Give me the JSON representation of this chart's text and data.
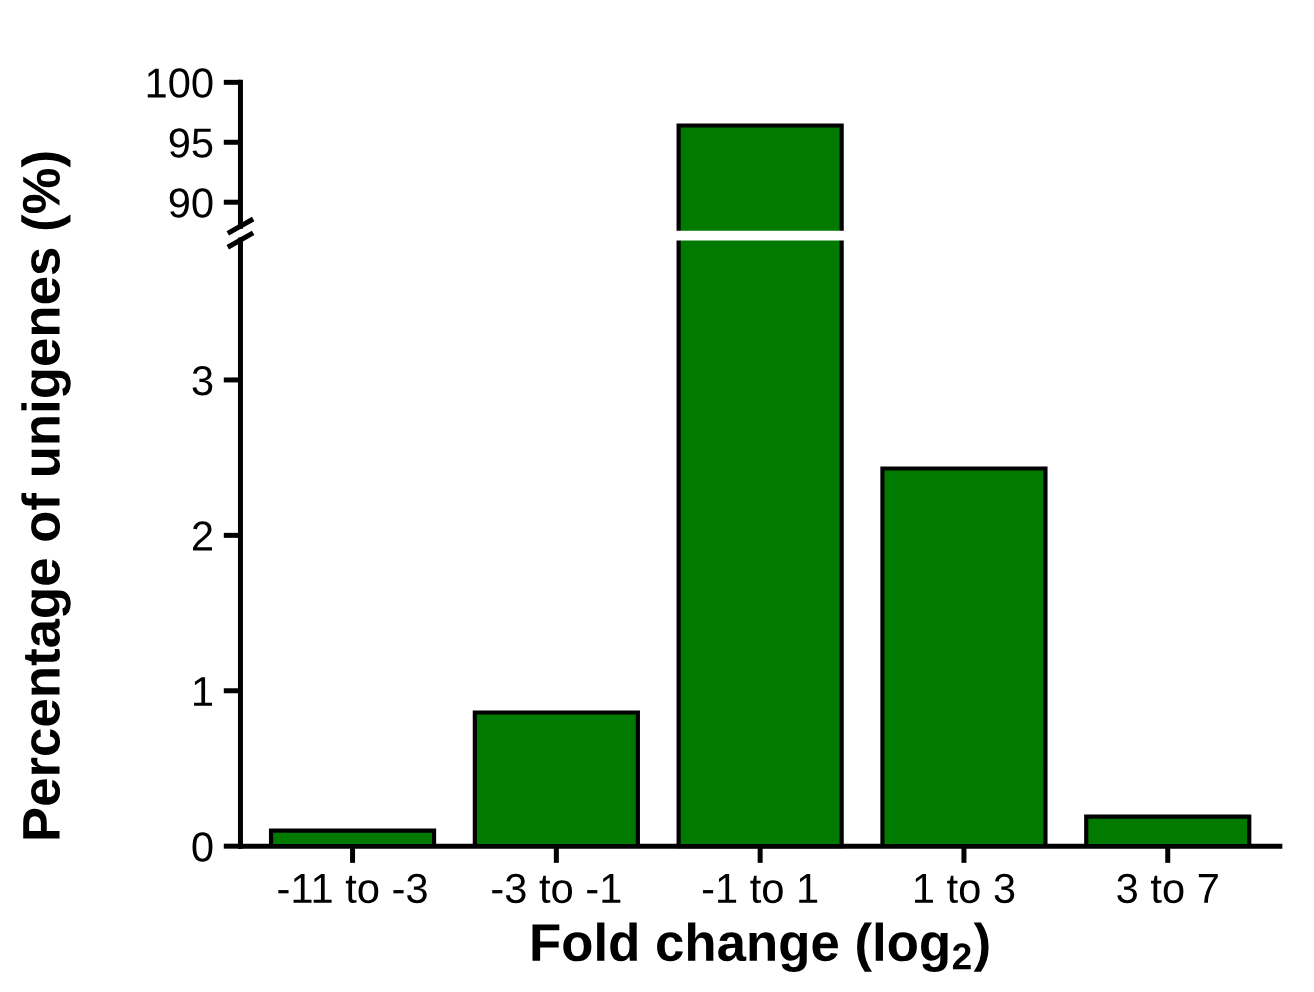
{
  "chart_data": [
    {
      "type": "bar",
      "categories": [
        null,
        null,
        null,
        null,
        null
      ],
      "color": "#007a00",
      "values": [
        null,
        null,
        96.4,
        null,
        null
      ],
      "ylim": [
        88,
        100
      ],
      "yticks": [
        90,
        95,
        100
      ],
      "tick_labels": "y",
      "ylabel": "Percentage of unigenes (%)"
    },
    {
      "type": "bar",
      "categories": [
        "-11 to -3",
        "-3 to -1",
        "-1 to 1",
        "1 to 3",
        "3 to 7"
      ],
      "color": "#007a00",
      "values": [
        0.1,
        0.86,
        null,
        2.43,
        0.19
      ],
      "ylim": [
        0,
        3.9
      ],
      "yticks": [
        0,
        1,
        2,
        3
      ],
      "xlabel": "Fold change (log$_{2}$)"
    }
  ]
}
